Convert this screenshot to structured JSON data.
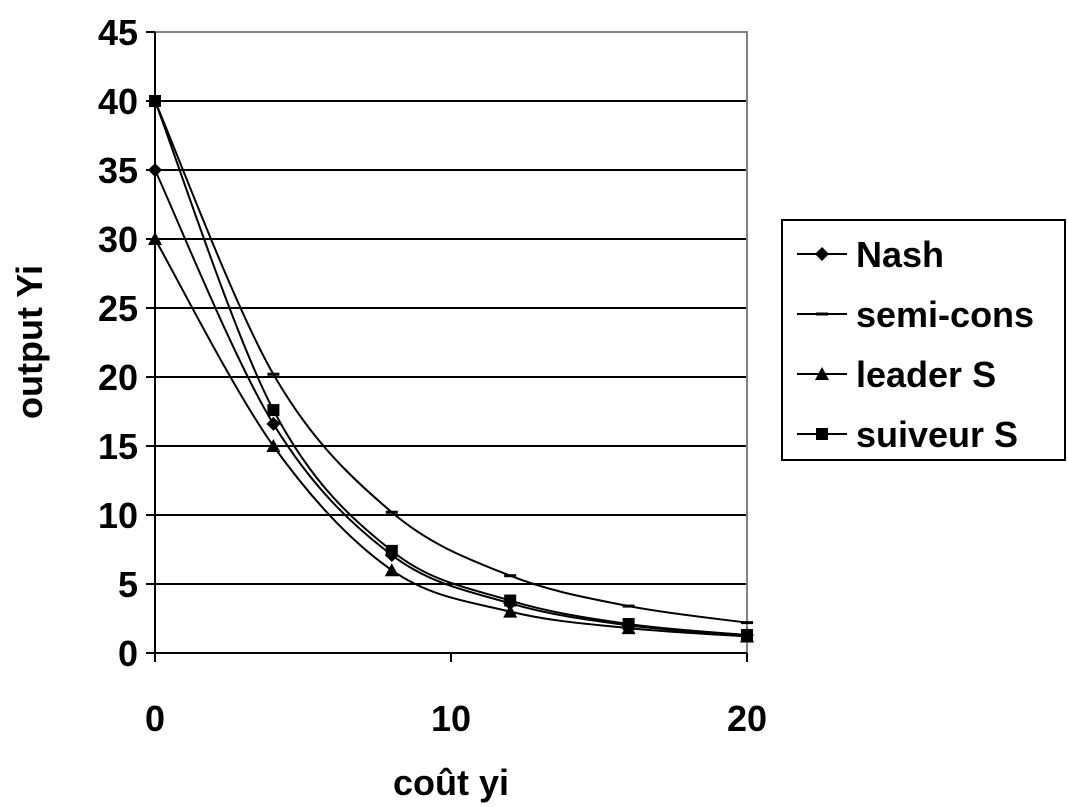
{
  "chart_data": {
    "type": "line",
    "xlabel": "coût yi",
    "ylabel": "output Yi",
    "xlim": [
      0,
      20
    ],
    "ylim": [
      0,
      45
    ],
    "x_ticks": [
      0,
      10,
      20
    ],
    "y_ticks": [
      0,
      5,
      10,
      15,
      20,
      25,
      30,
      35,
      40,
      45
    ],
    "grid": "horizontal",
    "legend_position": "right",
    "x": [
      0,
      4,
      8,
      12,
      16,
      20
    ],
    "series": [
      {
        "name": "Nash",
        "marker": "diamond",
        "values": [
          35,
          16.6,
          7.1,
          3.6,
          2.0,
          1.3
        ]
      },
      {
        "name": "semi-cons",
        "marker": "dash",
        "values": [
          40,
          20.2,
          10.2,
          5.6,
          3.4,
          2.2
        ]
      },
      {
        "name": "leader S",
        "marker": "triangle",
        "values": [
          30,
          15.0,
          6.0,
          3.0,
          1.8,
          1.2
        ]
      },
      {
        "name": "suiveur S",
        "marker": "square",
        "values": [
          40,
          17.6,
          7.4,
          3.8,
          2.1,
          1.3
        ]
      }
    ],
    "colors": {
      "line": "#000000",
      "grid": "#000000",
      "plot_border": "#808080"
    }
  }
}
